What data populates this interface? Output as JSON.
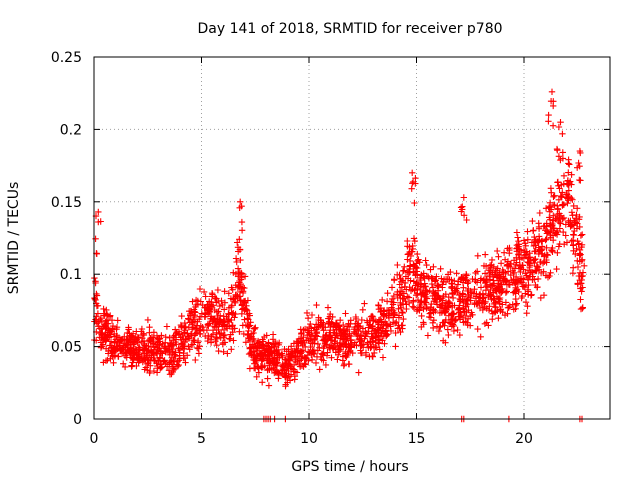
{
  "chart_data": {
    "type": "scatter",
    "title": "Day 141 of 2018, SRMTID for receiver p780",
    "xlabel": "GPS time / hours",
    "ylabel": "SRMTID / TECUs",
    "xlim": [
      0,
      24
    ],
    "ylim": [
      0,
      0.25
    ],
    "xticks": [
      0,
      5,
      10,
      15,
      20
    ],
    "xtick_labels": [
      "0",
      "5",
      "10",
      "15",
      "20"
    ],
    "yticks": [
      0,
      0.05,
      0.1,
      0.15,
      0.2,
      0.25
    ],
    "ytick_labels": [
      "0",
      "0.05",
      "0.1",
      "0.15",
      "0.2",
      "0.25"
    ],
    "grid": true,
    "legend": "none",
    "marker": "+",
    "series_color": "#ff0000",
    "series": [
      {
        "name": "p780",
        "profile_hours": [
          0.0,
          0.3,
          1.0,
          2.0,
          3.0,
          4.0,
          4.8,
          5.5,
          6.2,
          6.8,
          7.3,
          7.8,
          8.3,
          9.0,
          10.0,
          11.0,
          12.0,
          13.0,
          14.0,
          14.8,
          15.5,
          16.5,
          17.5,
          18.5,
          19.5,
          20.5,
          21.0,
          21.5,
          22.0,
          22.5,
          22.8
        ],
        "profile_median": [
          0.08,
          0.06,
          0.052,
          0.048,
          0.045,
          0.05,
          0.068,
          0.072,
          0.062,
          0.095,
          0.05,
          0.042,
          0.045,
          0.035,
          0.055,
          0.058,
          0.055,
          0.06,
          0.075,
          0.1,
          0.085,
          0.08,
          0.082,
          0.088,
          0.1,
          0.11,
          0.12,
          0.14,
          0.15,
          0.12,
          0.09
        ],
        "profile_spread": [
          0.03,
          0.022,
          0.02,
          0.02,
          0.02,
          0.022,
          0.028,
          0.028,
          0.028,
          0.035,
          0.025,
          0.018,
          0.02,
          0.018,
          0.022,
          0.022,
          0.022,
          0.022,
          0.028,
          0.035,
          0.03,
          0.028,
          0.028,
          0.03,
          0.032,
          0.035,
          0.04,
          0.045,
          0.045,
          0.04,
          0.03
        ],
        "peaks": [
          {
            "x": 6.8,
            "y": 0.15
          },
          {
            "x": 14.8,
            "y": 0.17
          },
          {
            "x": 17.2,
            "y": 0.153
          },
          {
            "x": 21.3,
            "y": 0.226
          },
          {
            "x": 21.7,
            "y": 0.205
          },
          {
            "x": 22.6,
            "y": 0.185
          },
          {
            "x": 0.2,
            "y": 0.143
          }
        ],
        "zero_points_hours": [
          7.9,
          8.0,
          8.1,
          8.2,
          8.4,
          8.9,
          17.1,
          17.2,
          19.3,
          22.6,
          22.7
        ]
      }
    ]
  }
}
